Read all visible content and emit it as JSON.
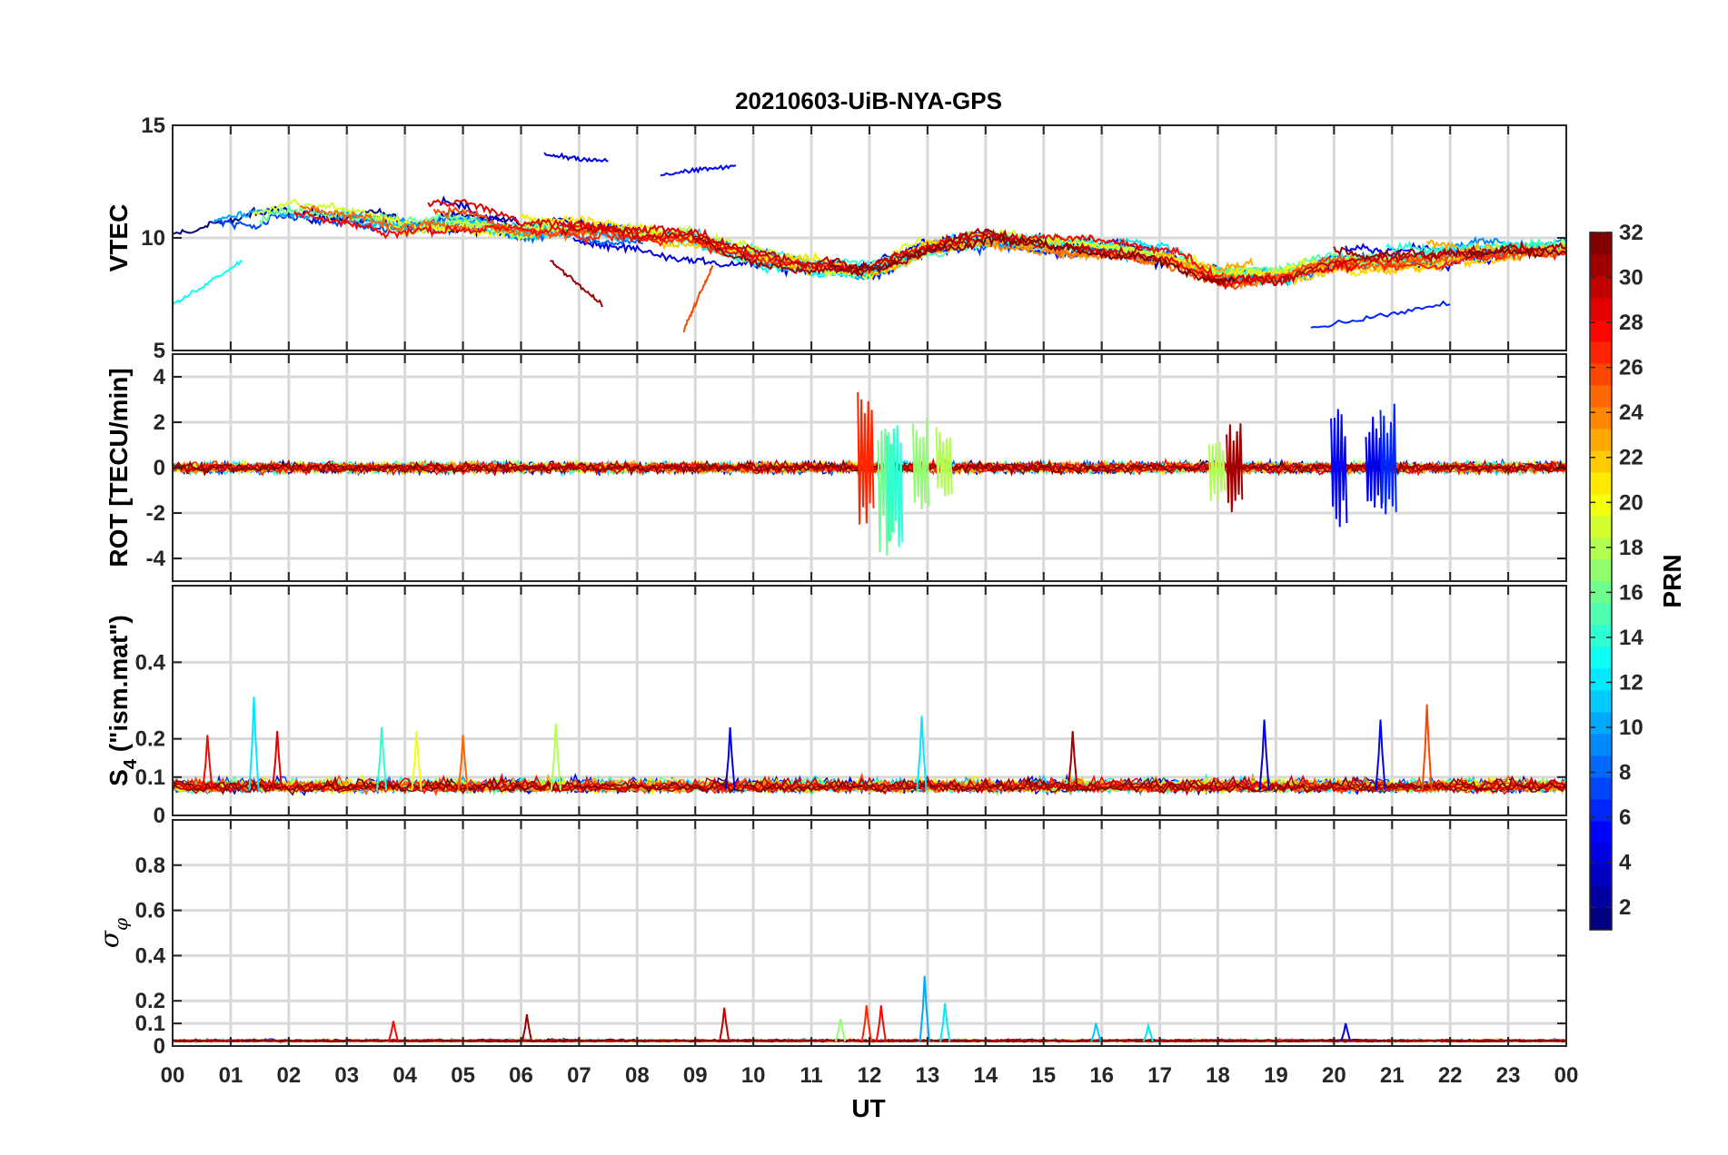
{
  "chart_data": {
    "type": "line",
    "title": "20210603-UiB-NYA-GPS",
    "xlabel": "UT",
    "x_ticks": [
      "00",
      "01",
      "02",
      "03",
      "04",
      "05",
      "06",
      "07",
      "08",
      "09",
      "10",
      "11",
      "12",
      "13",
      "14",
      "15",
      "16",
      "17",
      "18",
      "19",
      "20",
      "21",
      "22",
      "23",
      "00"
    ],
    "xlim_hours": [
      0,
      24
    ],
    "colorbar": {
      "label": "PRN",
      "colormap": "jet",
      "range": [
        1,
        32
      ],
      "ticks": [
        2,
        4,
        6,
        8,
        10,
        12,
        14,
        16,
        18,
        20,
        22,
        24,
        26,
        28,
        30,
        32
      ]
    },
    "panels": [
      {
        "id": "vtec",
        "ylabel": "VTEC",
        "ylim": [
          5,
          15
        ],
        "yticks": [
          5,
          10,
          15
        ],
        "grid": true,
        "baseline": [
          [
            0,
            10.0
          ],
          [
            1,
            10.6
          ],
          [
            2,
            11.2
          ],
          [
            3,
            11.0
          ],
          [
            4,
            10.5
          ],
          [
            5,
            10.7
          ],
          [
            6,
            10.3
          ],
          [
            7,
            10.4
          ],
          [
            8,
            10.2
          ],
          [
            9,
            10.0
          ],
          [
            10,
            9.2
          ],
          [
            11,
            8.8
          ],
          [
            12,
            8.6
          ],
          [
            13,
            9.6
          ],
          [
            14,
            10.1
          ],
          [
            15,
            9.8
          ],
          [
            16,
            9.6
          ],
          [
            17,
            9.2
          ],
          [
            18,
            8.3
          ],
          [
            19,
            8.4
          ],
          [
            20,
            9.0
          ],
          [
            21,
            9.0
          ],
          [
            22,
            9.2
          ],
          [
            23,
            9.4
          ],
          [
            24,
            9.5
          ]
        ],
        "series_note": "Per-PRN VTEC tracks",
        "prn_segments": [
          {
            "prn": 5,
            "x": [
              8.4,
              9.7
            ],
            "y": [
              12.8,
              13.2
            ]
          },
          {
            "prn": 4,
            "x": [
              6.4,
              7.5
            ],
            "y": [
              13.7,
              13.4
            ]
          },
          {
            "prn": 31,
            "x": [
              6.5,
              7.4
            ],
            "y": [
              9.0,
              7.0
            ]
          },
          {
            "prn": 26,
            "x": [
              8.8,
              9.3
            ],
            "y": [
              5.9,
              8.8
            ]
          },
          {
            "prn": 6,
            "x": [
              19.6,
              22.0
            ],
            "y": [
              6.0,
              7.1
            ]
          },
          {
            "prn": 13,
            "x": [
              0.0,
              1.2
            ],
            "y": [
              7.0,
              9.0
            ]
          }
        ]
      },
      {
        "id": "rot",
        "ylabel": "ROT [TECU/min]",
        "ylim": [
          -5,
          5
        ],
        "yticks": [
          -4,
          -2,
          0,
          2,
          4
        ],
        "grid": true,
        "spikes": [
          {
            "x": 11.95,
            "max": 3.6,
            "min": -2.6,
            "prn": 27
          },
          {
            "x": 12.3,
            "max": 2.0,
            "min": -4.0,
            "prn": 16
          },
          {
            "x": 12.45,
            "max": 2.0,
            "min": -4.2,
            "prn": 14
          },
          {
            "x": 12.9,
            "max": 2.5,
            "min": -2.0,
            "prn": 17
          },
          {
            "x": 13.3,
            "max": 2.2,
            "min": -1.5,
            "prn": 18
          },
          {
            "x": 18.0,
            "max": 1.5,
            "min": -1.9,
            "prn": 18
          },
          {
            "x": 18.3,
            "max": 2.0,
            "min": -2.0,
            "prn": 31
          },
          {
            "x": 20.1,
            "max": 2.7,
            "min": -2.7,
            "prn": 5
          },
          {
            "x": 20.7,
            "max": 2.6,
            "min": -2.2,
            "prn": 4
          },
          {
            "x": 20.95,
            "max": 3.0,
            "min": -2.1,
            "prn": 6
          }
        ]
      },
      {
        "id": "s4",
        "ylabel": "S4 (\"ism.mat\")",
        "ylabel_main": "S",
        "ylabel_sub": "4",
        "ylabel_rest": " (\"ism.mat\")",
        "ylim": [
          0,
          0.6
        ],
        "yticks": [
          0,
          0.1,
          0.2,
          0.4
        ],
        "ytick_labels": [
          "0",
          "0.1",
          "0.2",
          "0.4"
        ],
        "grid": true,
        "baseline": 0.065,
        "peaks": [
          {
            "x": 0.6,
            "y": 0.21,
            "prn": 28
          },
          {
            "x": 1.4,
            "y": 0.31,
            "prn": 12
          },
          {
            "x": 1.8,
            "y": 0.22,
            "prn": 29
          },
          {
            "x": 3.6,
            "y": 0.23,
            "prn": 14
          },
          {
            "x": 4.2,
            "y": 0.22,
            "prn": 20
          },
          {
            "x": 5.0,
            "y": 0.21,
            "prn": 25
          },
          {
            "x": 6.6,
            "y": 0.24,
            "prn": 18
          },
          {
            "x": 9.6,
            "y": 0.23,
            "prn": 4
          },
          {
            "x": 12.9,
            "y": 0.26,
            "prn": 12
          },
          {
            "x": 15.5,
            "y": 0.22,
            "prn": 31
          },
          {
            "x": 18.8,
            "y": 0.25,
            "prn": 4
          },
          {
            "x": 20.8,
            "y": 0.25,
            "prn": 5
          },
          {
            "x": 21.6,
            "y": 0.29,
            "prn": 26
          }
        ]
      },
      {
        "id": "sigma_phi",
        "ylabel": "σφ",
        "ylabel_main": "σ",
        "ylabel_sub": "φ",
        "ylim": [
          0,
          1.0
        ],
        "yticks": [
          0,
          0.1,
          0.2,
          0.4,
          0.6,
          0.8
        ],
        "ytick_labels": [
          "0",
          "0.1",
          "0.2",
          "0.4",
          "0.6",
          "0.8"
        ],
        "grid": true,
        "baseline": 0.02,
        "peaks": [
          {
            "x": 3.8,
            "y": 0.11,
            "prn": 28
          },
          {
            "x": 6.1,
            "y": 0.14,
            "prn": 31
          },
          {
            "x": 9.5,
            "y": 0.17,
            "prn": 30
          },
          {
            "x": 11.5,
            "y": 0.12,
            "prn": 17
          },
          {
            "x": 11.95,
            "y": 0.18,
            "prn": 27
          },
          {
            "x": 12.2,
            "y": 0.18,
            "prn": 28
          },
          {
            "x": 12.95,
            "y": 0.31,
            "prn": 10
          },
          {
            "x": 13.3,
            "y": 0.19,
            "prn": 12
          },
          {
            "x": 15.9,
            "y": 0.1,
            "prn": 11
          },
          {
            "x": 16.8,
            "y": 0.09,
            "prn": 12
          },
          {
            "x": 20.2,
            "y": 0.1,
            "prn": 4
          }
        ]
      }
    ]
  }
}
